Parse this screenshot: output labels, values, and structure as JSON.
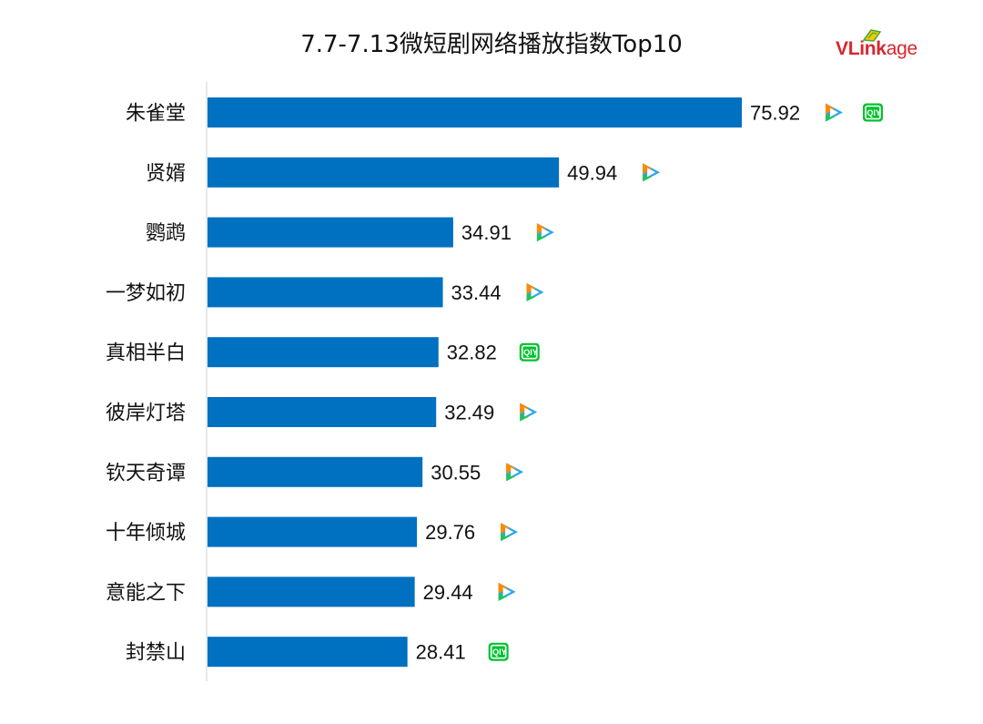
{
  "brand": {
    "name": "VLinkage"
  },
  "chart_data": {
    "type": "bar",
    "orientation": "horizontal",
    "title": "7.7-7.13微短剧网络播放指数Top10",
    "categories": [
      "朱雀堂",
      "贤婿",
      "鹦鹉",
      "一梦如初",
      "真相半白",
      "彼岸灯塔",
      "钦天奇谭",
      "十年倾城",
      "意能之下",
      "封禁山"
    ],
    "values": [
      75.92,
      49.94,
      34.91,
      33.44,
      32.82,
      32.49,
      30.55,
      29.76,
      29.44,
      28.41
    ],
    "platforms": [
      [
        "tencent-video-icon",
        "iqiyi-icon"
      ],
      [
        "tencent-video-icon"
      ],
      [
        "tencent-video-icon"
      ],
      [
        "tencent-video-icon"
      ],
      [
        "iqiyi-icon"
      ],
      [
        "tencent-video-icon"
      ],
      [
        "tencent-video-icon"
      ],
      [
        "tencent-video-icon"
      ],
      [
        "tencent-video-icon"
      ],
      [
        "iqiyi-icon"
      ]
    ],
    "xlim": [
      0,
      80
    ],
    "grid": false,
    "bar_color": "#0070c0"
  }
}
